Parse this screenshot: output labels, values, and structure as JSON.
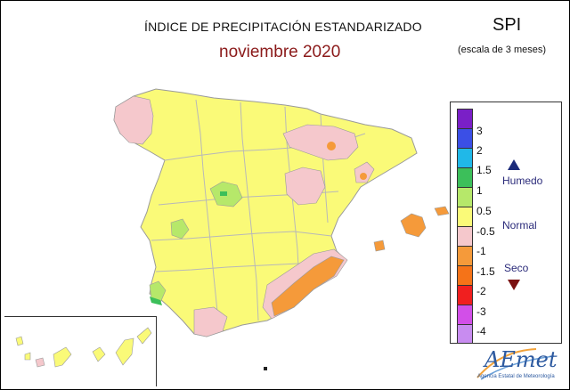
{
  "header": {
    "title": "ÍNDICE DE PRECIPITACIÓN ESTANDARIZADO",
    "subtitle": "noviembre 2020",
    "index_name": "SPI",
    "scale_note": "(escala de 3 meses)"
  },
  "legend": {
    "ticks": [
      "3",
      "2",
      "1.5",
      "1",
      "0.5",
      "-0.5",
      "-1",
      "-1.5",
      "-2",
      "-3",
      "-4"
    ],
    "colors": [
      "#7a1fc7",
      "#3b4fe6",
      "#20b8e8",
      "#3cbf5a",
      "#b6e86a",
      "#fafa78",
      "#f5c8cc",
      "#f59a3a",
      "#f57318",
      "#f01f1f",
      "#d24fe8",
      "#c88cf0"
    ],
    "categories": {
      "wet": "Humedo",
      "normal": "Normal",
      "dry": "Seco"
    }
  },
  "map_colors": {
    "base": "#fafa78",
    "pink": "#f5c8cc",
    "orange": "#f59a3a",
    "green_light": "#b6e86a",
    "green": "#3cbf5a",
    "border": "#9a9a9a"
  },
  "logo": {
    "name": "AEmet",
    "subtitle": "Agencia Estatal de Meteorología"
  }
}
